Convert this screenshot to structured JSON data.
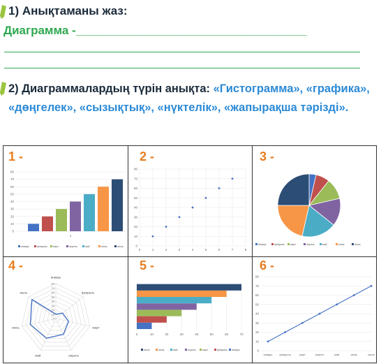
{
  "q1": {
    "text": "1) Анықтаманы жаз:"
  },
  "definition": {
    "text": "Диаграмма -___________________________________"
  },
  "q2": {
    "intro": "2) Диаграммалардың түрін анықта:",
    "types": "«Гистограмма», «графика», «дөңгелек», «сызықтық», «нүктелік», «жапырақша тәрізді»."
  },
  "cells": [
    {
      "num": "1 -"
    },
    {
      "num": "2 -"
    },
    {
      "num": "3 -"
    },
    {
      "num": "4 -"
    },
    {
      "num": "5 -"
    },
    {
      "num": "6 -"
    }
  ],
  "colors": [
    "#4472c4",
    "#c0504d",
    "#9bbb59",
    "#8064a2",
    "#4bacc6",
    "#f79646",
    "#2c4d75"
  ],
  "chart_data": [
    {
      "type": "bar",
      "categories": [
        "январь",
        "февраль",
        "март",
        "апрель",
        "май",
        "июнь",
        "июль"
      ],
      "values": [
        10,
        20,
        30,
        40,
        50,
        60,
        70
      ],
      "xtick": "1",
      "yticks": [
        "0",
        "10",
        "20",
        "30",
        "40",
        "50",
        "60",
        "70",
        "80"
      ],
      "ylim": [
        0,
        80
      ]
    },
    {
      "type": "scatter",
      "x": [
        1,
        2,
        3,
        4,
        5,
        6,
        7
      ],
      "y": [
        10,
        20,
        30,
        40,
        50,
        60,
        70
      ],
      "xlim": [
        0,
        8
      ],
      "ylim": [
        0,
        80
      ],
      "xticks": [
        "0",
        "1",
        "2",
        "3",
        "4",
        "5",
        "6",
        "7",
        "8"
      ],
      "yticks": [
        "0",
        "10",
        "20",
        "30",
        "40",
        "50",
        "60",
        "70",
        "80"
      ]
    },
    {
      "type": "pie",
      "categories": [
        "январь",
        "февраль",
        "март",
        "апрель",
        "май",
        "июнь",
        "июль"
      ],
      "values": [
        10,
        20,
        30,
        40,
        50,
        60,
        70
      ]
    },
    {
      "type": "radar",
      "categories": [
        "январь",
        "февраль",
        "март",
        "апрель",
        "май",
        "июнь",
        "июль"
      ],
      "values": [
        10,
        20,
        30,
        40,
        50,
        60,
        70
      ],
      "rmax": 80,
      "rticks": [
        "0",
        "10",
        "20",
        "30",
        "40",
        "50",
        "60",
        "70",
        "80"
      ]
    },
    {
      "type": "bar-horizontal",
      "categories": [
        "январь",
        "февраль",
        "март",
        "апрель",
        "май",
        "июнь",
        "июль"
      ],
      "values": [
        10,
        20,
        30,
        40,
        50,
        60,
        70
      ],
      "legend_order": [
        "июль",
        "июнь",
        "май",
        "апрель",
        "март",
        "февраль",
        "январь"
      ],
      "xticks": [
        "0",
        "10",
        "20",
        "30",
        "40",
        "50",
        "60",
        "70"
      ],
      "xlim": [
        0,
        70
      ]
    },
    {
      "type": "line",
      "categories": [
        "январь",
        "февраль",
        "март",
        "апрель",
        "май",
        "июнь",
        "июль"
      ],
      "values": [
        10,
        20,
        30,
        40,
        50,
        60,
        70
      ],
      "yticks": [
        "0",
        "10",
        "20",
        "30",
        "40",
        "50",
        "60",
        "70",
        "80"
      ],
      "ylim": [
        0,
        80
      ]
    }
  ]
}
